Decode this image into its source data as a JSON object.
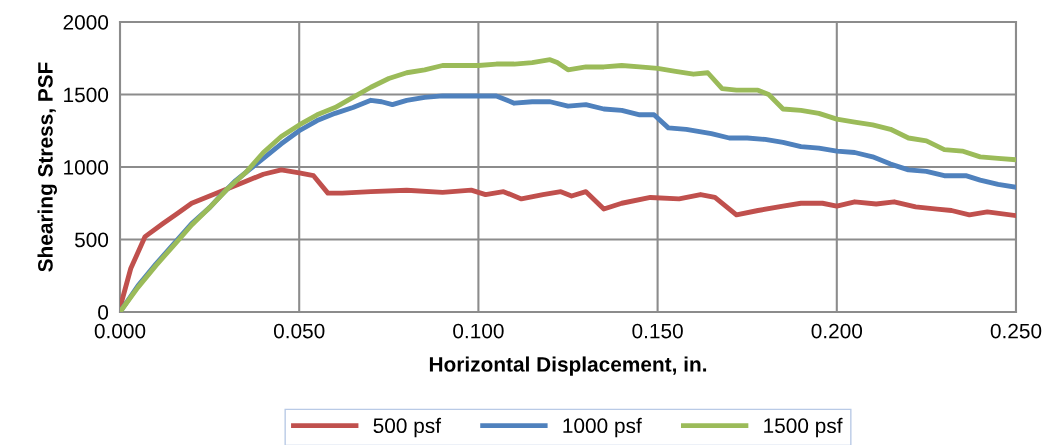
{
  "chart_data": {
    "type": "line",
    "xlabel": "Horizontal Displacement, in.",
    "ylabel": "Shearing Stress, PSF",
    "xlim": [
      0,
      0.25
    ],
    "xticks": [
      {
        "value": 0,
        "label": "0.000"
      },
      {
        "value": 0.05,
        "label": "0.050"
      },
      {
        "value": 0.1,
        "label": "0.100"
      },
      {
        "value": 0.15,
        "label": "0.150"
      },
      {
        "value": 0.2,
        "label": "0.200"
      },
      {
        "value": 0.25,
        "label": "0.250"
      }
    ],
    "ylim": [
      0,
      2000
    ],
    "yticks": [
      0,
      500,
      1000,
      1500,
      2000
    ],
    "grid": true,
    "legend": "bottom",
    "marker": "none",
    "line_style": "solid",
    "series": [
      {
        "name": "500 psf",
        "color": "#c0504d",
        "x": [
          0,
          0.003,
          0.007,
          0.012,
          0.016,
          0.02,
          0.025,
          0.03,
          0.035,
          0.04,
          0.045,
          0.05,
          0.054,
          0.058,
          0.062,
          0.07,
          0.08,
          0.09,
          0.098,
          0.102,
          0.107,
          0.112,
          0.118,
          0.123,
          0.126,
          0.13,
          0.135,
          0.14,
          0.148,
          0.156,
          0.162,
          0.166,
          0.172,
          0.178,
          0.185,
          0.19,
          0.196,
          0.2,
          0.205,
          0.211,
          0.216,
          0.222,
          0.228,
          0.232,
          0.237,
          0.242,
          0.25
        ],
        "values": [
          30,
          300,
          520,
          610,
          680,
          750,
          800,
          850,
          900,
          950,
          980,
          960,
          940,
          820,
          820,
          830,
          840,
          825,
          840,
          810,
          830,
          780,
          810,
          830,
          800,
          830,
          710,
          750,
          790,
          780,
          810,
          790,
          670,
          700,
          730,
          750,
          750,
          730,
          760,
          745,
          760,
          725,
          710,
          700,
          670,
          690,
          665
        ]
      },
      {
        "name": "1000 psf",
        "color": "#4f81bd",
        "x": [
          0,
          0.005,
          0.01,
          0.015,
          0.02,
          0.025,
          0.028,
          0.032,
          0.036,
          0.04,
          0.045,
          0.05,
          0.055,
          0.06,
          0.065,
          0.07,
          0.073,
          0.076,
          0.08,
          0.085,
          0.09,
          0.1,
          0.105,
          0.11,
          0.115,
          0.12,
          0.125,
          0.13,
          0.135,
          0.14,
          0.145,
          0.149,
          0.153,
          0.158,
          0.165,
          0.17,
          0.175,
          0.18,
          0.185,
          0.19,
          0.195,
          0.2,
          0.205,
          0.21,
          0.215,
          0.22,
          0.225,
          0.23,
          0.236,
          0.24,
          0.245,
          0.25
        ],
        "values": [
          0,
          180,
          330,
          470,
          610,
          720,
          800,
          900,
          980,
          1060,
          1160,
          1250,
          1320,
          1370,
          1410,
          1460,
          1450,
          1430,
          1460,
          1480,
          1490,
          1490,
          1490,
          1440,
          1450,
          1450,
          1420,
          1430,
          1400,
          1390,
          1360,
          1360,
          1270,
          1260,
          1230,
          1200,
          1200,
          1190,
          1170,
          1140,
          1130,
          1110,
          1100,
          1070,
          1020,
          980,
          970,
          940,
          940,
          910,
          880,
          860
        ]
      },
      {
        "name": "1500 psf",
        "color": "#9bbb59",
        "x": [
          0,
          0.005,
          0.01,
          0.015,
          0.02,
          0.025,
          0.03,
          0.035,
          0.04,
          0.045,
          0.05,
          0.055,
          0.06,
          0.065,
          0.07,
          0.075,
          0.08,
          0.085,
          0.09,
          0.095,
          0.1,
          0.105,
          0.11,
          0.115,
          0.12,
          0.122,
          0.125,
          0.13,
          0.135,
          0.14,
          0.145,
          0.15,
          0.155,
          0.16,
          0.164,
          0.168,
          0.172,
          0.178,
          0.181,
          0.185,
          0.19,
          0.195,
          0.2,
          0.205,
          0.21,
          0.215,
          0.22,
          0.225,
          0.23,
          0.235,
          0.24,
          0.245,
          0.25
        ],
        "values": [
          0,
          170,
          320,
          460,
          600,
          720,
          850,
          960,
          1100,
          1210,
          1290,
          1360,
          1410,
          1480,
          1550,
          1610,
          1650,
          1670,
          1700,
          1700,
          1700,
          1710,
          1710,
          1720,
          1740,
          1720,
          1670,
          1690,
          1690,
          1700,
          1690,
          1680,
          1660,
          1640,
          1650,
          1540,
          1530,
          1530,
          1500,
          1400,
          1390,
          1370,
          1330,
          1310,
          1290,
          1260,
          1200,
          1180,
          1120,
          1110,
          1070,
          1060,
          1050
        ]
      }
    ]
  }
}
